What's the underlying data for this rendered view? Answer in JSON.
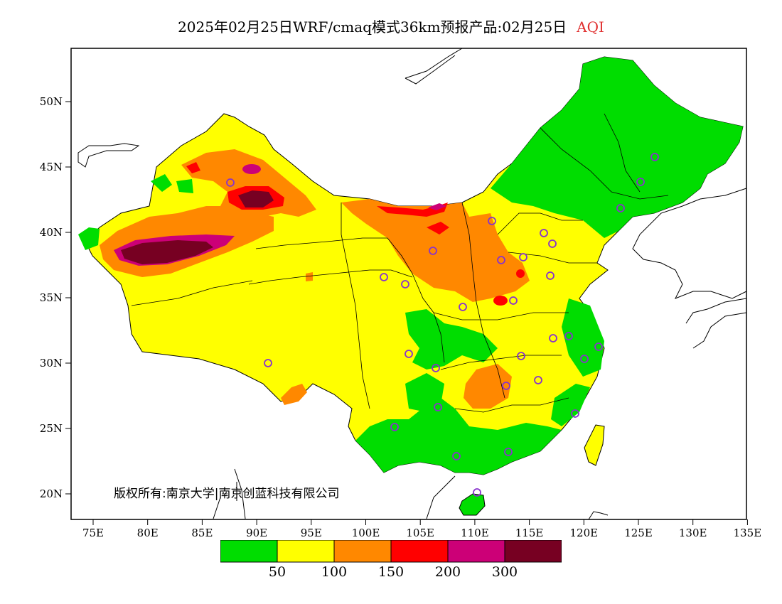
{
  "title": {
    "main": "2025年02月25日WRF/cmaq模式36km预报产品:02月25日",
    "variable": "AQI"
  },
  "axes": {
    "lon_labels": [
      "75E",
      "80E",
      "85E",
      "90E",
      "95E",
      "100E",
      "105E",
      "110E",
      "115E",
      "120E",
      "125E",
      "130E",
      "135E"
    ],
    "lat_labels": [
      "50N",
      "45N",
      "40N",
      "35N",
      "30N",
      "25N",
      "20N"
    ]
  },
  "copyright": "版权所有:南京大学|南京创蓝科技有限公司",
  "legend": {
    "colors": [
      "#00dd00",
      "#ffff00",
      "#ff8800",
      "#ff0000",
      "#cc0077",
      "#770022"
    ],
    "labels": [
      "50",
      "100",
      "150",
      "200",
      "300"
    ]
  },
  "colors": {
    "good": "#00dd00",
    "moderate": "#ffff00",
    "sensitive": "#ff8800",
    "unhealthy": "#ff0000",
    "very_unhealthy": "#cc0077",
    "hazardous": "#770022",
    "station_marker": "#8833cc"
  }
}
